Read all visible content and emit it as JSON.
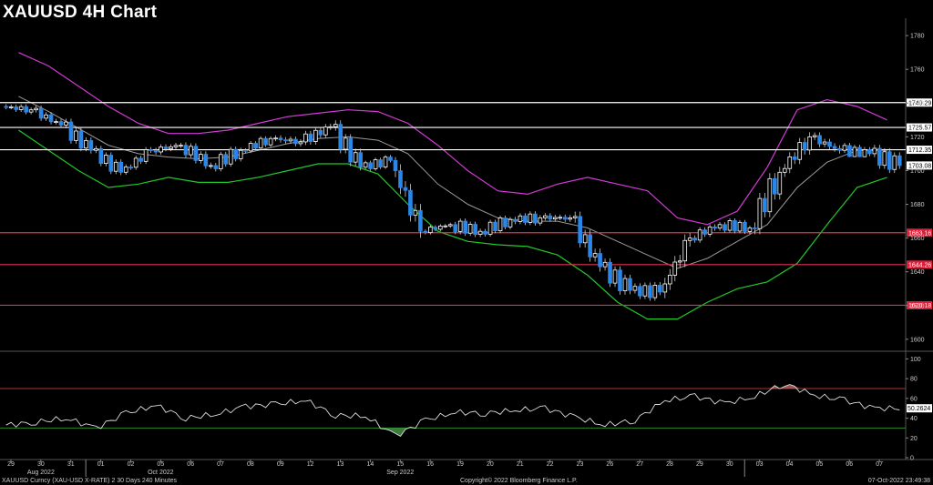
{
  "title": "XAUUSD 4H Chart",
  "footer": {
    "left": "XAUUSD Curncy (XAU-USD X-RATE) 2 30 Days 240 Minutes",
    "center": "Copyright© 2022 Bloomberg Finance L.P.",
    "right": "07-Oct-2022 23:49:38"
  },
  "colors": {
    "bullish": "#ffffff",
    "bearish": "#2a86e8",
    "upper_band": "#d23ad6",
    "lower_band": "#20c828",
    "mid_band": "#9a9a9a",
    "resistance": "#ffffff",
    "support": "#e0334a",
    "rsi_line": "#dddddd"
  },
  "chart_data": [
    {
      "type": "candlestick",
      "name": "price",
      "ylim": [
        1594,
        1786
      ],
      "y_ticks": [
        1600,
        1620,
        1640,
        1660,
        1680,
        1700,
        1720,
        1740,
        1760,
        1780
      ],
      "x_ticks": [
        "29",
        "30",
        "31",
        "01",
        "02",
        "05",
        "06",
        "07",
        "08",
        "09",
        "12",
        "13",
        "14",
        "15",
        "16",
        "19",
        "20",
        "21",
        "22",
        "23",
        "26",
        "27",
        "28",
        "29",
        "30",
        "03",
        "04",
        "05",
        "06",
        "07"
      ],
      "month_labels": [
        {
          "label": "Aug 2022",
          "at": "30"
        },
        {
          "label": "Sep 2022",
          "at": "15"
        },
        {
          "label": "Oct 2022",
          "at": "05"
        }
      ],
      "last_price_label": "1703.08",
      "ohlc_daily": [
        [
          1738,
          1745,
          1728,
          1736
        ],
        [
          1736,
          1742,
          1722,
          1727
        ],
        [
          1727,
          1731,
          1707,
          1712
        ],
        [
          1712,
          1716,
          1695,
          1699
        ],
        [
          1699,
          1715,
          1696,
          1712
        ],
        [
          1712,
          1727,
          1708,
          1715
        ],
        [
          1715,
          1720,
          1698,
          1703
        ],
        [
          1703,
          1718,
          1698,
          1712
        ],
        [
          1712,
          1722,
          1706,
          1719
        ],
        [
          1719,
          1730,
          1710,
          1717
        ],
        [
          1717,
          1736,
          1713,
          1726
        ],
        [
          1726,
          1730,
          1700,
          1702
        ],
        [
          1702,
          1710,
          1695,
          1706
        ],
        [
          1706,
          1708,
          1660,
          1664
        ],
        [
          1664,
          1672,
          1658,
          1668
        ],
        [
          1668,
          1680,
          1660,
          1664
        ],
        [
          1664,
          1678,
          1660,
          1671
        ],
        [
          1671,
          1680,
          1660,
          1672
        ],
        [
          1672,
          1686,
          1666,
          1672
        ],
        [
          1672,
          1676,
          1640,
          1643
        ],
        [
          1643,
          1652,
          1624,
          1629
        ],
        [
          1629,
          1645,
          1622,
          1628
        ],
        [
          1628,
          1663,
          1618,
          1660
        ],
        [
          1660,
          1670,
          1650,
          1668
        ],
        [
          1668,
          1677,
          1660,
          1666
        ],
        [
          1666,
          1703,
          1662,
          1699
        ],
        [
          1699,
          1729,
          1695,
          1720
        ],
        [
          1720,
          1726,
          1702,
          1712
        ],
        [
          1712,
          1727,
          1708,
          1710
        ],
        [
          1710,
          1716,
          1690,
          1703
        ]
      ],
      "bollinger_upper_daily": [
        1770,
        1762,
        1750,
        1738,
        1728,
        1722,
        1722,
        1724,
        1728,
        1732,
        1734,
        1736,
        1735,
        1728,
        1715,
        1700,
        1688,
        1686,
        1692,
        1696,
        1692,
        1688,
        1672,
        1668,
        1676,
        1702,
        1736,
        1742,
        1738,
        1730
      ],
      "bollinger_middle_daily": [
        1744,
        1735,
        1725,
        1715,
        1710,
        1708,
        1707,
        1708,
        1712,
        1716,
        1719,
        1720,
        1718,
        1710,
        1692,
        1680,
        1672,
        1670,
        1670,
        1666,
        1658,
        1650,
        1642,
        1648,
        1658,
        1668,
        1690,
        1705,
        1712,
        1712
      ],
      "bollinger_lower_daily": [
        1724,
        1712,
        1700,
        1690,
        1692,
        1696,
        1693,
        1693,
        1696,
        1700,
        1704,
        1704,
        1698,
        1680,
        1664,
        1658,
        1656,
        1655,
        1650,
        1638,
        1622,
        1612,
        1612,
        1622,
        1630,
        1634,
        1645,
        1668,
        1690,
        1696
      ],
      "levels": [
        {
          "label": "1740.29",
          "value": 1740.29,
          "kind": "resistance"
        },
        {
          "label": "1725.57",
          "value": 1725.57,
          "kind": "resistance"
        },
        {
          "label": "1712.35",
          "value": 1712.35,
          "kind": "resistance"
        },
        {
          "label": "1663.16",
          "value": 1663.16,
          "kind": "support"
        },
        {
          "label": "1644.26",
          "value": 1644.26,
          "kind": "support"
        },
        {
          "label": "1620.18",
          "value": 1620.18,
          "kind": "support"
        }
      ]
    },
    {
      "type": "line",
      "name": "rsi",
      "ylim": [
        0,
        105
      ],
      "y_ticks": [
        0,
        20,
        40,
        60,
        80,
        100
      ],
      "overbought": 70,
      "oversold": 30,
      "last_value_label": "50.2624",
      "values_daily": [
        33,
        36,
        40,
        30,
        45,
        53,
        40,
        44,
        52,
        54,
        58,
        43,
        42,
        22,
        38,
        46,
        45,
        48,
        50,
        41,
        33,
        38,
        58,
        62,
        55,
        62,
        75,
        63,
        58,
        50
      ]
    }
  ]
}
